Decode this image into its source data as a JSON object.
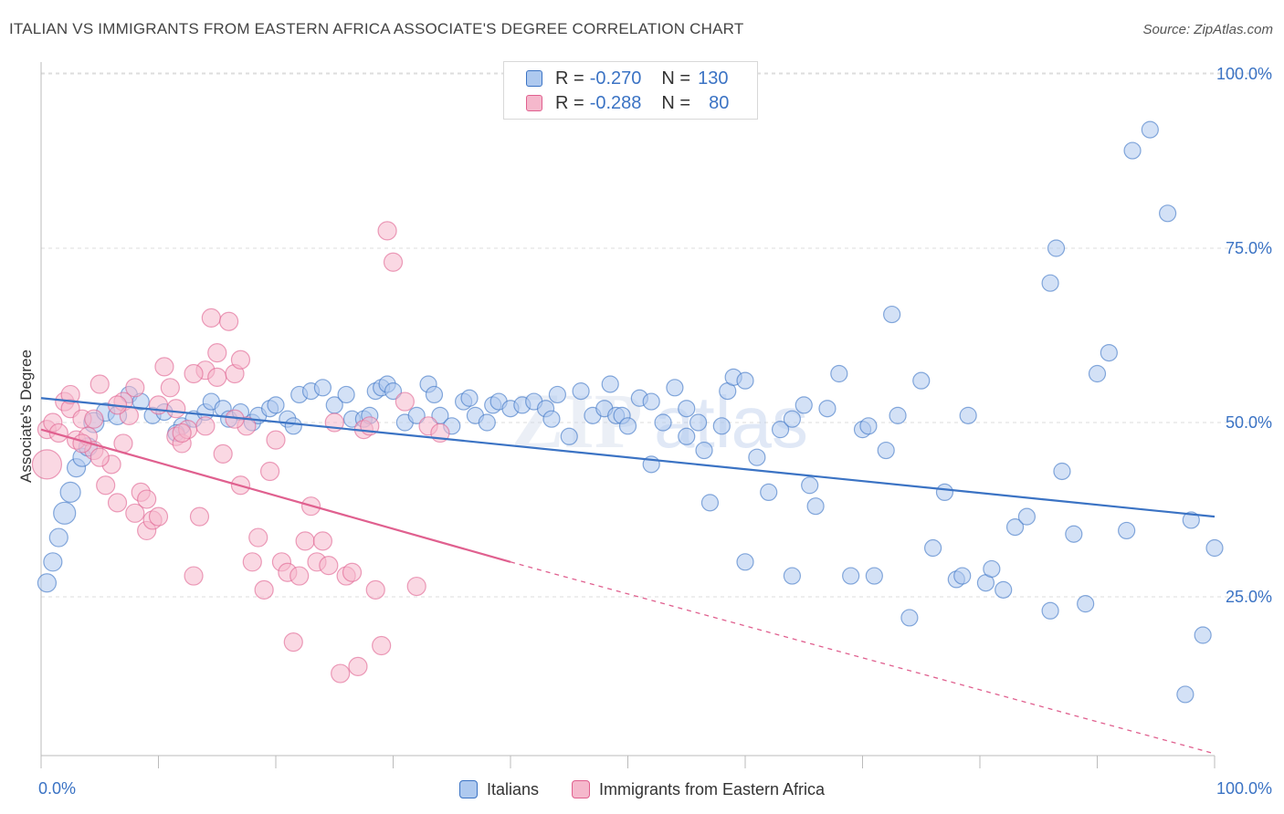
{
  "title": "ITALIAN VS IMMIGRANTS FROM EASTERN AFRICA ASSOCIATE'S DEGREE CORRELATION CHART",
  "source": "Source: ZipAtlas.com",
  "watermark": {
    "zip": "ZIP",
    "atlas": "atlas"
  },
  "colors": {
    "blue": "#3b73c4",
    "blue_fill": "#aec9ef",
    "pink": "#e0608f",
    "pink_fill": "#f5b8cc",
    "grid": "#dddddd"
  },
  "stats_legend": [
    {
      "r_label": "R =",
      "r_value": "-0.270",
      "n_label": "N =",
      "n_value": "130"
    },
    {
      "r_label": "R =",
      "r_value": "-0.288",
      "n_label": "N =",
      "n_value": "80"
    }
  ],
  "chart_data": {
    "type": "scatter",
    "xlabel": "",
    "ylabel": "Associate's Degree",
    "xlim": [
      0,
      100
    ],
    "ylim": [
      0,
      100
    ],
    "x_tick_labels": [
      "0.0%",
      "100.0%"
    ],
    "y_tick_labels": [
      "100.0%",
      "75.0%",
      "50.0%",
      "25.0%"
    ],
    "y_tick_values": [
      100,
      75,
      50,
      25
    ],
    "grid": true,
    "legend_position": "bottom",
    "series": [
      {
        "name": "Italians",
        "color": "#3b73c4",
        "trend": {
          "x": [
            0,
            100
          ],
          "y": [
            53.5,
            36.5
          ],
          "style": "solid"
        },
        "points": [
          [
            0.5,
            27,
            10
          ],
          [
            1,
            30,
            10
          ],
          [
            1.5,
            33.5,
            10
          ],
          [
            2,
            37,
            12
          ],
          [
            2.5,
            40,
            11
          ],
          [
            3,
            43.5,
            10
          ],
          [
            3.5,
            45,
            10
          ],
          [
            4,
            46.5,
            10
          ],
          [
            4.5,
            50,
            11
          ],
          [
            5.5,
            51.5,
            10
          ],
          [
            6.5,
            51,
            10
          ],
          [
            7.5,
            54,
            9
          ],
          [
            8.5,
            53,
            9
          ],
          [
            9.5,
            51,
            9
          ],
          [
            10.5,
            51.5,
            9
          ],
          [
            12,
            49.5,
            9
          ],
          [
            11.5,
            48.5,
            9
          ],
          [
            13,
            50.5,
            9
          ],
          [
            14,
            51.5,
            9
          ],
          [
            14.5,
            53,
            9
          ],
          [
            15.5,
            52,
            9
          ],
          [
            16,
            50.5,
            9
          ],
          [
            17,
            51.5,
            9
          ],
          [
            18,
            50,
            9
          ],
          [
            18.5,
            51,
            9
          ],
          [
            19.5,
            52,
            9
          ],
          [
            20,
            52.5,
            9
          ],
          [
            21,
            50.5,
            9
          ],
          [
            21.5,
            49.5,
            9
          ],
          [
            22,
            54,
            9
          ],
          [
            23,
            54.5,
            9
          ],
          [
            24,
            55,
            9
          ],
          [
            25,
            52.5,
            9
          ],
          [
            26,
            54,
            9
          ],
          [
            26.5,
            50.5,
            9
          ],
          [
            27.5,
            50.5,
            9
          ],
          [
            28,
            51,
            9
          ],
          [
            28.5,
            54.5,
            9
          ],
          [
            29,
            55,
            9
          ],
          [
            29.5,
            55.5,
            9
          ],
          [
            30,
            54.5,
            9
          ],
          [
            31,
            50,
            9
          ],
          [
            32,
            51,
            9
          ],
          [
            33,
            55.5,
            9
          ],
          [
            33.5,
            54,
            9
          ],
          [
            34,
            51,
            9
          ],
          [
            35,
            49.5,
            9
          ],
          [
            36,
            53,
            9
          ],
          [
            36.5,
            53.5,
            9
          ],
          [
            37,
            51,
            9
          ],
          [
            38,
            50,
            9
          ],
          [
            38.5,
            52.5,
            9
          ],
          [
            39,
            53,
            9
          ],
          [
            40,
            52,
            9
          ],
          [
            41,
            52.5,
            9
          ],
          [
            42,
            53,
            9
          ],
          [
            43,
            52,
            9
          ],
          [
            43.5,
            50.5,
            9
          ],
          [
            44,
            54,
            9
          ],
          [
            45,
            48,
            9
          ],
          [
            46,
            54.5,
            9
          ],
          [
            47,
            51,
            9
          ],
          [
            48,
            52,
            9
          ],
          [
            48.5,
            55.5,
            9
          ],
          [
            49,
            51,
            9
          ],
          [
            49.5,
            51,
            9
          ],
          [
            50,
            49.5,
            9
          ],
          [
            51,
            53.5,
            9
          ],
          [
            52,
            53,
            9
          ],
          [
            53,
            50,
            9
          ],
          [
            54,
            55,
            9
          ],
          [
            55,
            52,
            9
          ],
          [
            56,
            50,
            9
          ],
          [
            56.5,
            46,
            9
          ],
          [
            57,
            38.5,
            9
          ],
          [
            58,
            49.5,
            9
          ],
          [
            58.5,
            54.5,
            9
          ],
          [
            59,
            56.5,
            9
          ],
          [
            60,
            56,
            9
          ],
          [
            61,
            45,
            9
          ],
          [
            62,
            40,
            9
          ],
          [
            63,
            49,
            9
          ],
          [
            64,
            50.5,
            9
          ],
          [
            65,
            52.5,
            9
          ],
          [
            65.5,
            41,
            9
          ],
          [
            66,
            38,
            9
          ],
          [
            67,
            52,
            9
          ],
          [
            68,
            57,
            9
          ],
          [
            69,
            28,
            9
          ],
          [
            70,
            49,
            9
          ],
          [
            70.5,
            49.5,
            9
          ],
          [
            71,
            28,
            9
          ],
          [
            72,
            46,
            9
          ],
          [
            72.5,
            65.5,
            9
          ],
          [
            73,
            51,
            9
          ],
          [
            74,
            22,
            9
          ],
          [
            75,
            56,
            9
          ],
          [
            76,
            32,
            9
          ],
          [
            77,
            40,
            9
          ],
          [
            78,
            27.5,
            9
          ],
          [
            78.5,
            28,
            9
          ],
          [
            79,
            51,
            9
          ],
          [
            80.5,
            27,
            9
          ],
          [
            81,
            29,
            9
          ],
          [
            82,
            26,
            9
          ],
          [
            83,
            35,
            9
          ],
          [
            84,
            36.5,
            9
          ],
          [
            86,
            23,
            9
          ],
          [
            86,
            70,
            9
          ],
          [
            86.5,
            75,
            9
          ],
          [
            87,
            43,
            9
          ],
          [
            88,
            34,
            9
          ],
          [
            89,
            24,
            9
          ],
          [
            90,
            57,
            9
          ],
          [
            91,
            60,
            9
          ],
          [
            92.5,
            34.5,
            9
          ],
          [
            93,
            89,
            9
          ],
          [
            94.5,
            92,
            9
          ],
          [
            96,
            80,
            9
          ],
          [
            97.5,
            11,
            9
          ],
          [
            98,
            36,
            9
          ],
          [
            99,
            19.5,
            9
          ],
          [
            100,
            32,
            9
          ],
          [
            64,
            28,
            9
          ],
          [
            60,
            30,
            9
          ],
          [
            55,
            48,
            9
          ],
          [
            52,
            44,
            9
          ]
        ]
      },
      {
        "name": "Immigrants from Eastern Africa",
        "color": "#e0608f",
        "trend": {
          "x": [
            0,
            40
          ],
          "y": [
            49,
            30
          ],
          "style": "solid",
          "extend_to": [
            100,
            2.5
          ]
        },
        "points": [
          [
            0.5,
            44,
            16
          ],
          [
            0.5,
            49,
            10
          ],
          [
            1,
            50,
            10
          ],
          [
            1.5,
            48.5,
            10
          ],
          [
            2,
            53,
            10
          ],
          [
            2.5,
            52,
            10
          ],
          [
            3,
            47.5,
            10
          ],
          [
            3.5,
            50.5,
            10
          ],
          [
            4,
            48,
            10
          ],
          [
            4.5,
            46,
            10
          ],
          [
            5,
            55.5,
            10
          ],
          [
            5.5,
            41,
            10
          ],
          [
            6,
            44,
            10
          ],
          [
            6.5,
            38.5,
            10
          ],
          [
            7,
            53,
            10
          ],
          [
            7.5,
            51,
            10
          ],
          [
            8,
            37,
            10
          ],
          [
            8.5,
            40,
            10
          ],
          [
            9,
            34.5,
            10
          ],
          [
            9.5,
            36,
            10
          ],
          [
            10,
            52.5,
            10
          ],
          [
            10.5,
            58,
            10
          ],
          [
            11,
            55,
            10
          ],
          [
            11.5,
            48,
            10
          ],
          [
            12,
            47,
            10
          ],
          [
            12.5,
            49,
            10
          ],
          [
            13,
            28,
            10
          ],
          [
            13.5,
            36.5,
            10
          ],
          [
            14,
            57.5,
            10
          ],
          [
            14.5,
            65,
            10
          ],
          [
            15,
            56.5,
            10
          ],
          [
            15.5,
            45.5,
            10
          ],
          [
            16,
            64.5,
            10
          ],
          [
            16.5,
            57,
            10
          ],
          [
            17,
            59,
            10
          ],
          [
            17.5,
            49.5,
            10
          ],
          [
            18,
            30,
            10
          ],
          [
            18.5,
            33.5,
            10
          ],
          [
            19,
            26,
            10
          ],
          [
            19.5,
            43,
            10
          ],
          [
            20,
            47.5,
            10
          ],
          [
            20.5,
            30,
            10
          ],
          [
            21,
            28.5,
            10
          ],
          [
            21.5,
            18.5,
            10
          ],
          [
            22,
            28,
            10
          ],
          [
            22.5,
            33,
            10
          ],
          [
            23,
            38,
            10
          ],
          [
            23.5,
            30,
            10
          ],
          [
            24,
            33,
            10
          ],
          [
            24.5,
            29.5,
            10
          ],
          [
            25,
            50,
            10
          ],
          [
            25.5,
            14,
            10
          ],
          [
            26,
            28,
            10
          ],
          [
            26.5,
            28.5,
            10
          ],
          [
            27,
            15,
            10
          ],
          [
            27.5,
            49,
            10
          ],
          [
            28,
            49.5,
            10
          ],
          [
            28.5,
            26,
            10
          ],
          [
            29,
            18,
            10
          ],
          [
            29.5,
            77.5,
            10
          ],
          [
            30,
            73,
            10
          ],
          [
            31,
            53,
            10
          ],
          [
            32,
            26.5,
            10
          ],
          [
            33,
            49.5,
            10
          ],
          [
            34,
            48.5,
            10
          ],
          [
            2.5,
            54,
            10
          ],
          [
            3.5,
            47,
            10
          ],
          [
            4.5,
            50.5,
            10
          ],
          [
            5,
            45,
            10
          ],
          [
            6.5,
            52.5,
            10
          ],
          [
            7,
            47,
            10
          ],
          [
            8,
            55,
            10
          ],
          [
            9,
            39,
            10
          ],
          [
            10,
            36.5,
            10
          ],
          [
            11.5,
            52,
            10
          ],
          [
            12,
            48.5,
            10
          ],
          [
            13,
            57,
            10
          ],
          [
            14,
            49.5,
            10
          ],
          [
            15,
            60,
            10
          ],
          [
            16.5,
            50.5,
            10
          ],
          [
            17,
            41,
            10
          ]
        ]
      }
    ]
  }
}
